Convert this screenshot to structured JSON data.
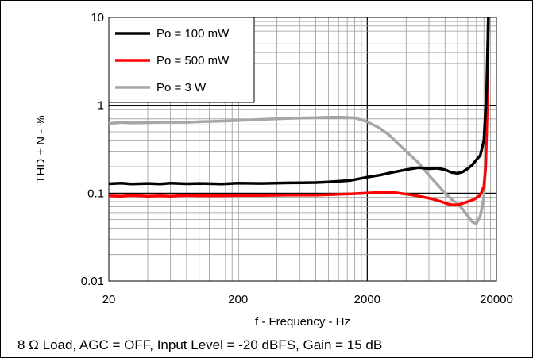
{
  "chart_data": {
    "type": "line",
    "xlabel": "f - Frequency - Hz",
    "ylabel": "THD + N - %",
    "xscale": "log",
    "yscale": "log",
    "xlim": [
      20,
      20000
    ],
    "ylim": [
      0.01,
      10
    ],
    "x_ticks": [
      "20",
      "200",
      "2000",
      "20000"
    ],
    "y_ticks": [
      "0.01",
      "0.1",
      "1",
      "10"
    ],
    "grid": true,
    "legend_position": "top-left",
    "series": [
      {
        "name": "Po = 100 mW",
        "color": "#000000",
        "points": [
          [
            20,
            0.128
          ],
          [
            25,
            0.13
          ],
          [
            30,
            0.127
          ],
          [
            40,
            0.129
          ],
          [
            50,
            0.127
          ],
          [
            60,
            0.13
          ],
          [
            80,
            0.128
          ],
          [
            100,
            0.129
          ],
          [
            150,
            0.127
          ],
          [
            200,
            0.13
          ],
          [
            300,
            0.129
          ],
          [
            500,
            0.131
          ],
          [
            800,
            0.132
          ],
          [
            1000,
            0.134
          ],
          [
            1500,
            0.14
          ],
          [
            2000,
            0.152
          ],
          [
            2500,
            0.16
          ],
          [
            3000,
            0.17
          ],
          [
            4000,
            0.185
          ],
          [
            5000,
            0.195
          ],
          [
            6000,
            0.19
          ],
          [
            7000,
            0.192
          ],
          [
            8000,
            0.185
          ],
          [
            9000,
            0.172
          ],
          [
            10000,
            0.168
          ],
          [
            11000,
            0.175
          ],
          [
            12000,
            0.19
          ],
          [
            13000,
            0.21
          ],
          [
            14000,
            0.24
          ],
          [
            15000,
            0.27
          ],
          [
            16000,
            0.4
          ],
          [
            16800,
            1.5
          ],
          [
            17300,
            10
          ]
        ]
      },
      {
        "name": "Po = 500 mW",
        "color": "#ff0000",
        "points": [
          [
            20,
            0.093
          ],
          [
            25,
            0.092
          ],
          [
            30,
            0.094
          ],
          [
            40,
            0.092
          ],
          [
            50,
            0.093
          ],
          [
            60,
            0.092
          ],
          [
            80,
            0.094
          ],
          [
            100,
            0.093
          ],
          [
            150,
            0.093
          ],
          [
            200,
            0.094
          ],
          [
            300,
            0.094
          ],
          [
            500,
            0.095
          ],
          [
            800,
            0.095
          ],
          [
            1000,
            0.096
          ],
          [
            1500,
            0.098
          ],
          [
            2000,
            0.1
          ],
          [
            2500,
            0.102
          ],
          [
            3000,
            0.103
          ],
          [
            3500,
            0.1
          ],
          [
            4500,
            0.095
          ],
          [
            5500,
            0.09
          ],
          [
            6500,
            0.085
          ],
          [
            7500,
            0.08
          ],
          [
            8500,
            0.075
          ],
          [
            9500,
            0.073
          ],
          [
            10500,
            0.075
          ],
          [
            12000,
            0.08
          ],
          [
            13500,
            0.085
          ],
          [
            15000,
            0.095
          ],
          [
            16000,
            0.12
          ],
          [
            16500,
            0.2
          ],
          [
            17000,
            1.0
          ],
          [
            17300,
            10
          ]
        ]
      },
      {
        "name": "Po = 3 W",
        "color": "#a6a6a6",
        "points": [
          [
            20,
            0.62
          ],
          [
            25,
            0.64
          ],
          [
            30,
            0.63
          ],
          [
            50,
            0.64
          ],
          [
            80,
            0.64
          ],
          [
            100,
            0.65
          ],
          [
            150,
            0.66
          ],
          [
            200,
            0.67
          ],
          [
            300,
            0.69
          ],
          [
            500,
            0.71
          ],
          [
            700,
            0.72
          ],
          [
            1000,
            0.73
          ],
          [
            1300,
            0.73
          ],
          [
            1600,
            0.72
          ],
          [
            2000,
            0.65
          ],
          [
            2500,
            0.55
          ],
          [
            3000,
            0.45
          ],
          [
            3500,
            0.36
          ],
          [
            4000,
            0.3
          ],
          [
            5000,
            0.22
          ],
          [
            6000,
            0.16
          ],
          [
            7000,
            0.125
          ],
          [
            8000,
            0.1
          ],
          [
            9000,
            0.085
          ],
          [
            10000,
            0.075
          ],
          [
            11000,
            0.065
          ],
          [
            12000,
            0.055
          ],
          [
            13000,
            0.047
          ],
          [
            14000,
            0.045
          ],
          [
            15000,
            0.055
          ],
          [
            16000,
            0.09
          ],
          [
            16500,
            0.2
          ],
          [
            17000,
            1.2
          ],
          [
            17400,
            10
          ]
        ]
      }
    ],
    "annotation": "8 Ω Load, AGC = OFF, Input Level = -20 dBFS, Gain = 15 dB"
  }
}
